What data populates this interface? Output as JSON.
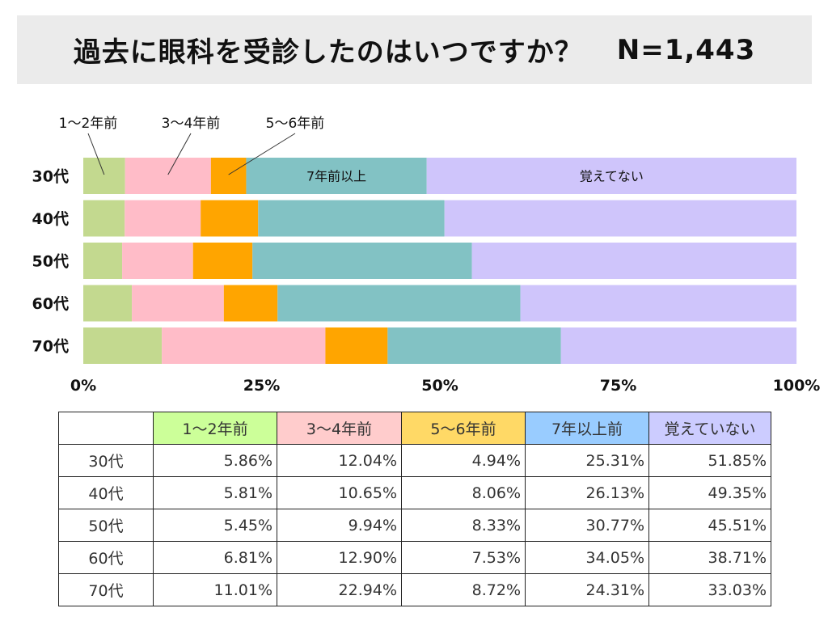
{
  "title": "過去に眼科を受診したのはいつですか？",
  "sample": "N=1,443",
  "chart_data": {
    "type": "bar",
    "orientation": "horizontal",
    "stacked": true,
    "title": "過去に眼科を受診したのはいつですか？",
    "categories": [
      "30代",
      "40代",
      "50代",
      "60代",
      "70代"
    ],
    "series": [
      {
        "name": "1〜2年前",
        "color": "#c3d98f",
        "values": [
          5.86,
          5.81,
          5.45,
          6.81,
          11.01
        ]
      },
      {
        "name": "3〜4年前",
        "color": "#ffbcc8",
        "values": [
          12.04,
          10.65,
          9.94,
          12.9,
          22.94
        ]
      },
      {
        "name": "5〜6年前",
        "color": "#ffa500",
        "values": [
          4.94,
          8.06,
          8.33,
          7.53,
          8.72
        ]
      },
      {
        "name": "7年前以上",
        "color": "#82c2c4",
        "values": [
          25.31,
          26.13,
          30.77,
          34.05,
          24.31
        ]
      },
      {
        "name": "覚えてない",
        "color": "#cfc5fb",
        "values": [
          51.85,
          49.35,
          45.51,
          38.71,
          33.03
        ]
      }
    ],
    "xlim": [
      0,
      100
    ],
    "xticks": [
      "0%",
      "25%",
      "50%",
      "75%",
      "100%"
    ],
    "xtick_values": [
      0,
      25,
      50,
      75,
      100
    ],
    "annotations": [
      "1〜2年前",
      "3〜4年前",
      "5〜6年前"
    ],
    "inbar_labels": {
      "series": [
        "7年前以上",
        "覚えてない"
      ],
      "category": "30代"
    }
  },
  "table": {
    "headers": [
      {
        "label": "1〜2年前",
        "bg": "#ccff99"
      },
      {
        "label": "3〜4年前",
        "bg": "#ffcccc"
      },
      {
        "label": "5〜6年前",
        "bg": "#ffd966"
      },
      {
        "label": "7年以上前",
        "bg": "#99ccff"
      },
      {
        "label": "覚えていない",
        "bg": "#ccccff"
      }
    ],
    "rows": [
      {
        "label": "30代",
        "cells": [
          "5.86%",
          "12.04%",
          "4.94%",
          "25.31%",
          "51.85%"
        ]
      },
      {
        "label": "40代",
        "cells": [
          "5.81%",
          "10.65%",
          "8.06%",
          "26.13%",
          "49.35%"
        ]
      },
      {
        "label": "50代",
        "cells": [
          "5.45%",
          "9.94%",
          "8.33%",
          "30.77%",
          "45.51%"
        ]
      },
      {
        "label": "60代",
        "cells": [
          "6.81%",
          "12.90%",
          "7.53%",
          "34.05%",
          "38.71%"
        ]
      },
      {
        "label": "70代",
        "cells": [
          "11.01%",
          "22.94%",
          "8.72%",
          "24.31%",
          "33.03%"
        ]
      }
    ]
  }
}
